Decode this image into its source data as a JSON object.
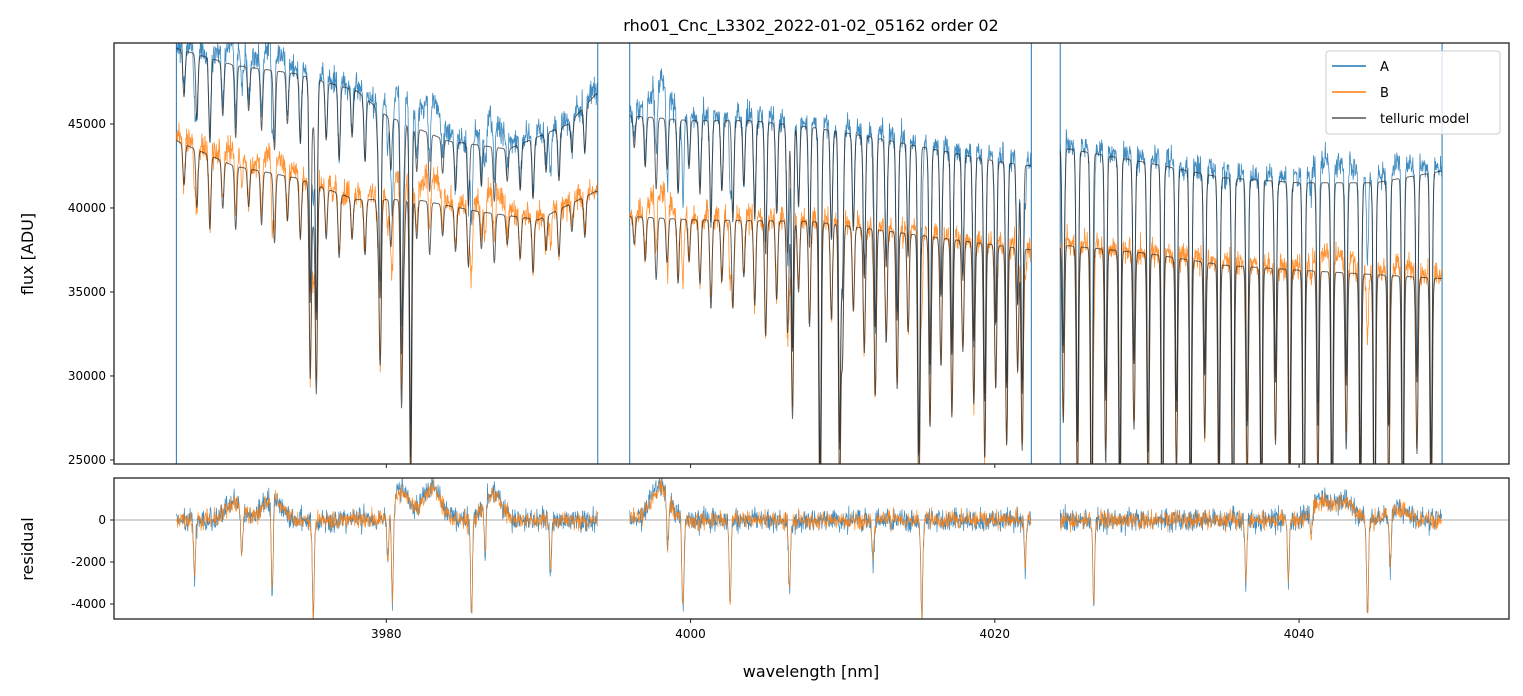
{
  "chart_data": [
    {
      "type": "line",
      "title": "rho01_Cnc_L3302_2022-01-02_05162  order 02",
      "xlabel": "wavelength [nm]",
      "ylabel": "flux [ADU]",
      "xlim": [
        3962.1,
        4053.8
      ],
      "ylim": [
        24760,
        49820
      ],
      "yticks": [
        25000,
        30000,
        35000,
        40000,
        45000
      ],
      "xticks": [
        3980,
        4000,
        4020,
        4040
      ],
      "legend": {
        "placement": "top-right",
        "entries": [
          "A",
          "B",
          "telluric model"
        ]
      },
      "segments": [
        [
          3966.2,
          3993.9
        ],
        [
          3996.0,
          4022.4
        ],
        [
          4024.3,
          4049.4
        ]
      ],
      "series": [
        {
          "name": "A",
          "color": "#1f77b4",
          "continuum": [
            [
              3966.2,
              49500
            ],
            [
              3970,
              48500
            ],
            [
              3974,
              48000
            ],
            [
              3978,
              47000
            ],
            [
              3980,
              45500
            ],
            [
              3984,
              44000
            ],
            [
              3988,
              43500
            ],
            [
              3992,
              45000
            ],
            [
              3993.8,
              46800
            ],
            [
              3996,
              45500
            ],
            [
              4000,
              45200
            ],
            [
              4004,
              45200
            ],
            [
              4008,
              44800
            ],
            [
              4012,
              44200
            ],
            [
              4016,
              43500
            ],
            [
              4020,
              42800
            ],
            [
              4022.4,
              42500
            ],
            [
              4024.3,
              43600
            ],
            [
              4030,
              42700
            ],
            [
              4035,
              41800
            ],
            [
              4040,
              41500
            ],
            [
              4045,
              41500
            ],
            [
              4049.4,
              42200
            ]
          ]
        },
        {
          "name": "B",
          "color": "#ff7f0e",
          "continuum": [
            [
              3966.2,
              44000
            ],
            [
              3970,
              42500
            ],
            [
              3974,
              41800
            ],
            [
              3978,
              40500
            ],
            [
              3982,
              40500
            ],
            [
              3986,
              39800
            ],
            [
              3990,
              39300
            ],
            [
              3993.8,
              41000
            ],
            [
              3996,
              39500
            ],
            [
              4000,
              39300
            ],
            [
              4008,
              39200
            ],
            [
              4014,
              38500
            ],
            [
              4020,
              37800
            ],
            [
              4022.4,
              37500
            ],
            [
              4024.3,
              37800
            ],
            [
              4030,
              37300
            ],
            [
              4035,
              36600
            ],
            [
              4040,
              36300
            ],
            [
              4049.4,
              35800
            ]
          ]
        },
        {
          "name": "telluric model",
          "color": "#555555"
        }
      ],
      "telluric_lines": {
        "groups": [
          {
            "start": 3966.7,
            "end": 3993.5,
            "spacing": 0.85,
            "depth_start": 0.08,
            "depth_end": 0.06
          },
          {
            "start": 3996.3,
            "end": 4022.2,
            "spacing": 0.72,
            "depth_start": 0.06,
            "depth_end": 0.28
          },
          {
            "start": 4024.5,
            "end": 4049.2,
            "spacing": 0.93,
            "depth_start": 0.4,
            "depth_end": 0.42
          }
        ],
        "strong": [
          [
            3975.0,
            0.28
          ],
          [
            3975.4,
            0.3
          ],
          [
            3979.6,
            0.24
          ],
          [
            3981.0,
            0.3
          ],
          [
            3981.6,
            0.44
          ],
          [
            4006.7,
            0.3
          ],
          [
            4008.5,
            0.34
          ],
          [
            4009.8,
            0.42
          ],
          [
            4015.0,
            0.26
          ],
          [
            4021.8,
            0.32
          ]
        ]
      },
      "noise_adu": 600
    },
    {
      "type": "line",
      "xlabel": "wavelength [nm]",
      "ylabel": "residual",
      "xlim": [
        3962.1,
        4053.8
      ],
      "ylim": [
        -4714,
        2000
      ],
      "yticks": [
        -4000,
        -2000,
        0
      ],
      "reference_line": 0,
      "series": [
        {
          "name": "A",
          "color": "#1f77b4"
        },
        {
          "name": "B",
          "color": "#ff7f0e"
        }
      ],
      "residual_dips": [
        [
          3967.4,
          -2600
        ],
        [
          3970.5,
          -2400
        ],
        [
          3972.5,
          -4700
        ],
        [
          3975.2,
          -4700
        ],
        [
          3980.1,
          -2500
        ],
        [
          3980.4,
          -4700
        ],
        [
          3985.6,
          -4700
        ],
        [
          3986.5,
          -2600
        ],
        [
          3990.8,
          -2500
        ],
        [
          3998.5,
          -2500
        ],
        [
          3999.5,
          -4700
        ],
        [
          4002.6,
          -4000
        ],
        [
          4006.5,
          -3500
        ],
        [
          4012,
          -2000
        ],
        [
          4015.2,
          -4700
        ],
        [
          4022,
          -2300
        ],
        [
          4026.5,
          -4000
        ],
        [
          4036.5,
          -3000
        ],
        [
          4039.3,
          -2800
        ],
        [
          4040.8,
          -1200
        ],
        [
          4044.5,
          -4700
        ],
        [
          4046,
          -2800
        ]
      ],
      "bumps": [
        [
          3970,
          800
        ],
        [
          3972.5,
          1200
        ],
        [
          3981,
          1400
        ],
        [
          3983,
          1600
        ],
        [
          3987,
          1300
        ],
        [
          3998,
          1700
        ],
        [
          4041.5,
          1000
        ],
        [
          4043,
          900
        ],
        [
          4046.5,
          600
        ]
      ],
      "noise_adu": 400
    }
  ]
}
